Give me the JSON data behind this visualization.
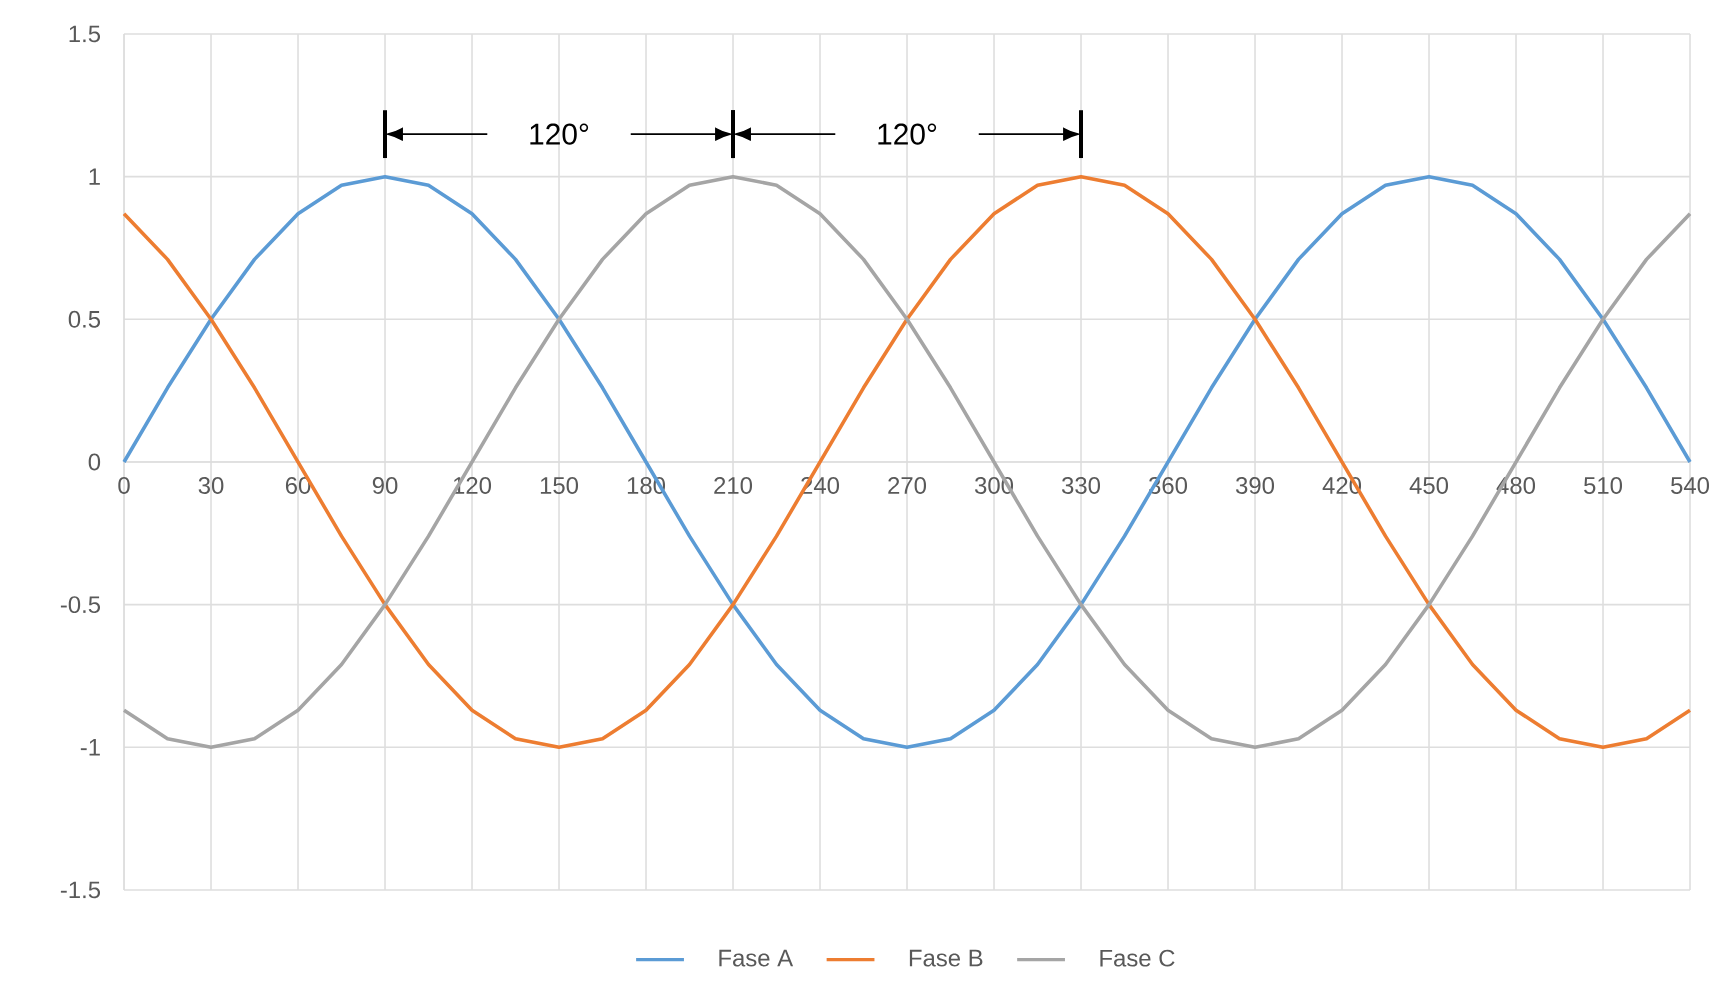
{
  "chart_data": {
    "type": "line",
    "x": [
      0,
      15,
      30,
      45,
      60,
      75,
      90,
      105,
      120,
      135,
      150,
      165,
      180,
      195,
      210,
      225,
      240,
      255,
      270,
      285,
      300,
      315,
      330,
      345,
      360,
      375,
      390,
      405,
      420,
      435,
      450,
      465,
      480,
      495,
      510,
      525,
      540
    ],
    "series": [
      {
        "name": "Fase A",
        "color": "#5b9bd5",
        "values": [
          0,
          0.26,
          0.5,
          0.71,
          0.87,
          0.97,
          1,
          0.97,
          0.87,
          0.71,
          0.5,
          0.26,
          0,
          -0.26,
          -0.5,
          -0.71,
          -0.87,
          -0.97,
          -1,
          -0.97,
          -0.87,
          -0.71,
          -0.5,
          -0.26,
          0,
          0.26,
          0.5,
          0.71,
          0.87,
          0.97,
          1,
          0.97,
          0.87,
          0.71,
          0.5,
          0.26,
          0
        ]
      },
      {
        "name": "Fase B",
        "color": "#ed7d31",
        "values": [
          0.87,
          0.71,
          0.5,
          0.26,
          0,
          -0.26,
          -0.5,
          -0.71,
          -0.87,
          -0.97,
          -1,
          -0.97,
          -0.87,
          -0.71,
          -0.5,
          -0.26,
          0,
          0.26,
          0.5,
          0.71,
          0.87,
          0.97,
          1,
          0.97,
          0.87,
          0.71,
          0.5,
          0.26,
          0,
          -0.26,
          -0.5,
          -0.71,
          -0.87,
          -0.97,
          -1,
          -0.97,
          -0.87
        ]
      },
      {
        "name": "Fase C",
        "color": "#a5a5a5",
        "values": [
          -0.87,
          -0.97,
          -1,
          -0.97,
          -0.87,
          -0.71,
          -0.5,
          -0.26,
          0,
          0.26,
          0.5,
          0.71,
          0.87,
          0.97,
          1,
          0.97,
          0.87,
          0.71,
          0.5,
          0.26,
          0,
          -0.26,
          -0.5,
          -0.71,
          -0.87,
          -0.97,
          -1,
          -0.97,
          -0.87,
          -0.71,
          -0.5,
          -0.26,
          0,
          0.26,
          0.5,
          0.71,
          0.87
        ]
      }
    ],
    "xlim": [
      0,
      540
    ],
    "xticks": [
      0,
      30,
      60,
      90,
      120,
      150,
      180,
      210,
      240,
      270,
      300,
      330,
      360,
      390,
      420,
      450,
      480,
      510,
      540
    ],
    "ylim": [
      -1.5,
      1.5
    ],
    "yticks": [
      -1.5,
      -1,
      -0.5,
      0,
      0.5,
      1,
      1.5
    ],
    "annotations": [
      "120°",
      "120°"
    ],
    "grid": true,
    "legend": "bottom",
    "marker": "none",
    "line_style": "solid"
  }
}
